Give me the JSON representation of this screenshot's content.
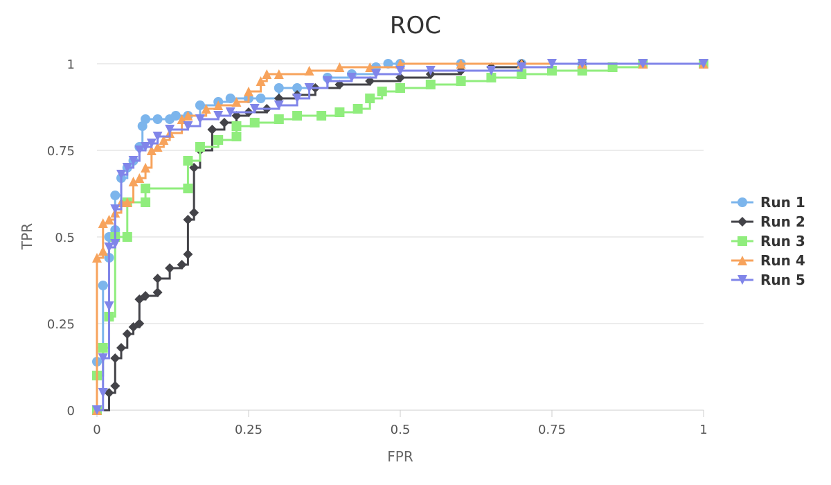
{
  "chart_data": {
    "type": "line",
    "title": "ROC",
    "xlabel": "FPR",
    "ylabel": "TPR",
    "xlim": [
      0,
      1
    ],
    "ylim": [
      0,
      1
    ],
    "x_ticks": [
      "0",
      "0.25",
      "0.5",
      "0.75",
      "1"
    ],
    "x_tick_values": [
      0,
      0.25,
      0.5,
      0.75,
      1
    ],
    "y_ticks": [
      "0",
      "0.25",
      "0.5",
      "0.75",
      "1"
    ],
    "y_tick_values": [
      0,
      0.25,
      0.5,
      0.75,
      1
    ],
    "grid": true,
    "legend_position": "right",
    "series": [
      {
        "name": "Run 1",
        "color": "#7cb5ec",
        "marker": "circle",
        "points": [
          [
            0,
            0
          ],
          [
            0,
            0.14
          ],
          [
            0.01,
            0.18
          ],
          [
            0.01,
            0.36
          ],
          [
            0.02,
            0.44
          ],
          [
            0.02,
            0.5
          ],
          [
            0.03,
            0.52
          ],
          [
            0.03,
            0.62
          ],
          [
            0.04,
            0.67
          ],
          [
            0.05,
            0.7
          ],
          [
            0.06,
            0.72
          ],
          [
            0.07,
            0.76
          ],
          [
            0.075,
            0.82
          ],
          [
            0.08,
            0.84
          ],
          [
            0.1,
            0.84
          ],
          [
            0.12,
            0.84
          ],
          [
            0.13,
            0.85
          ],
          [
            0.15,
            0.85
          ],
          [
            0.17,
            0.88
          ],
          [
            0.2,
            0.89
          ],
          [
            0.22,
            0.9
          ],
          [
            0.25,
            0.9
          ],
          [
            0.27,
            0.9
          ],
          [
            0.3,
            0.93
          ],
          [
            0.33,
            0.93
          ],
          [
            0.38,
            0.96
          ],
          [
            0.42,
            0.97
          ],
          [
            0.46,
            0.99
          ],
          [
            0.48,
            1
          ],
          [
            0.5,
            1
          ],
          [
            0.6,
            1
          ],
          [
            0.7,
            1
          ],
          [
            0.8,
            1
          ],
          [
            0.9,
            1
          ],
          [
            1,
            1
          ]
        ]
      },
      {
        "name": "Run 2",
        "color": "#434348",
        "marker": "diamond",
        "points": [
          [
            0,
            0
          ],
          [
            0.02,
            0.05
          ],
          [
            0.03,
            0.07
          ],
          [
            0.03,
            0.15
          ],
          [
            0.04,
            0.18
          ],
          [
            0.05,
            0.22
          ],
          [
            0.06,
            0.24
          ],
          [
            0.07,
            0.25
          ],
          [
            0.07,
            0.32
          ],
          [
            0.08,
            0.33
          ],
          [
            0.1,
            0.34
          ],
          [
            0.1,
            0.38
          ],
          [
            0.12,
            0.41
          ],
          [
            0.14,
            0.42
          ],
          [
            0.15,
            0.45
          ],
          [
            0.15,
            0.55
          ],
          [
            0.16,
            0.57
          ],
          [
            0.16,
            0.7
          ],
          [
            0.17,
            0.75
          ],
          [
            0.19,
            0.81
          ],
          [
            0.21,
            0.83
          ],
          [
            0.23,
            0.85
          ],
          [
            0.25,
            0.86
          ],
          [
            0.28,
            0.87
          ],
          [
            0.3,
            0.9
          ],
          [
            0.33,
            0.91
          ],
          [
            0.36,
            0.93
          ],
          [
            0.4,
            0.94
          ],
          [
            0.45,
            0.95
          ],
          [
            0.5,
            0.96
          ],
          [
            0.55,
            0.97
          ],
          [
            0.6,
            0.98
          ],
          [
            0.65,
            0.99
          ],
          [
            0.7,
            1
          ],
          [
            0.8,
            1
          ],
          [
            0.9,
            1
          ],
          [
            1,
            1
          ]
        ]
      },
      {
        "name": "Run 3",
        "color": "#90ed7d",
        "marker": "square",
        "points": [
          [
            0,
            0
          ],
          [
            0,
            0.1
          ],
          [
            0.01,
            0.18
          ],
          [
            0.02,
            0.27
          ],
          [
            0.03,
            0.5
          ],
          [
            0.05,
            0.5
          ],
          [
            0.05,
            0.6
          ],
          [
            0.08,
            0.6
          ],
          [
            0.08,
            0.64
          ],
          [
            0.15,
            0.64
          ],
          [
            0.15,
            0.72
          ],
          [
            0.17,
            0.76
          ],
          [
            0.2,
            0.78
          ],
          [
            0.23,
            0.79
          ],
          [
            0.23,
            0.82
          ],
          [
            0.26,
            0.83
          ],
          [
            0.3,
            0.84
          ],
          [
            0.33,
            0.85
          ],
          [
            0.37,
            0.85
          ],
          [
            0.4,
            0.86
          ],
          [
            0.43,
            0.87
          ],
          [
            0.45,
            0.9
          ],
          [
            0.47,
            0.92
          ],
          [
            0.5,
            0.93
          ],
          [
            0.55,
            0.94
          ],
          [
            0.6,
            0.95
          ],
          [
            0.65,
            0.96
          ],
          [
            0.7,
            0.97
          ],
          [
            0.75,
            0.98
          ],
          [
            0.8,
            0.98
          ],
          [
            0.85,
            0.99
          ],
          [
            0.9,
            1
          ],
          [
            1,
            1
          ]
        ]
      },
      {
        "name": "Run 4",
        "color": "#f7a35c",
        "marker": "triangle",
        "points": [
          [
            0,
            0
          ],
          [
            0,
            0.44
          ],
          [
            0.01,
            0.46
          ],
          [
            0.01,
            0.54
          ],
          [
            0.02,
            0.55
          ],
          [
            0.03,
            0.57
          ],
          [
            0.04,
            0.6
          ],
          [
            0.05,
            0.6
          ],
          [
            0.06,
            0.66
          ],
          [
            0.07,
            0.67
          ],
          [
            0.08,
            0.7
          ],
          [
            0.09,
            0.75
          ],
          [
            0.1,
            0.76
          ],
          [
            0.11,
            0.78
          ],
          [
            0.12,
            0.8
          ],
          [
            0.14,
            0.84
          ],
          [
            0.15,
            0.85
          ],
          [
            0.18,
            0.87
          ],
          [
            0.2,
            0.88
          ],
          [
            0.23,
            0.89
          ],
          [
            0.25,
            0.92
          ],
          [
            0.27,
            0.95
          ],
          [
            0.28,
            0.97
          ],
          [
            0.3,
            0.97
          ],
          [
            0.35,
            0.98
          ],
          [
            0.4,
            0.99
          ],
          [
            0.45,
            0.99
          ],
          [
            0.5,
            1
          ],
          [
            0.6,
            1
          ],
          [
            0.7,
            1
          ],
          [
            0.8,
            1
          ],
          [
            0.9,
            1
          ],
          [
            1,
            1
          ]
        ]
      },
      {
        "name": "Run 5",
        "color": "#8085e9",
        "marker": "triangle-down",
        "points": [
          [
            0,
            0
          ],
          [
            0.01,
            0.05
          ],
          [
            0.01,
            0.15
          ],
          [
            0.02,
            0.3
          ],
          [
            0.02,
            0.47
          ],
          [
            0.03,
            0.48
          ],
          [
            0.03,
            0.58
          ],
          [
            0.04,
            0.68
          ],
          [
            0.05,
            0.7
          ],
          [
            0.06,
            0.72
          ],
          [
            0.07,
            0.75
          ],
          [
            0.08,
            0.76
          ],
          [
            0.09,
            0.77
          ],
          [
            0.1,
            0.79
          ],
          [
            0.12,
            0.81
          ],
          [
            0.15,
            0.82
          ],
          [
            0.17,
            0.84
          ],
          [
            0.2,
            0.85
          ],
          [
            0.22,
            0.86
          ],
          [
            0.26,
            0.87
          ],
          [
            0.3,
            0.88
          ],
          [
            0.33,
            0.9
          ],
          [
            0.35,
            0.93
          ],
          [
            0.38,
            0.95
          ],
          [
            0.42,
            0.96
          ],
          [
            0.46,
            0.97
          ],
          [
            0.5,
            0.98
          ],
          [
            0.55,
            0.98
          ],
          [
            0.65,
            0.98
          ],
          [
            0.7,
            0.99
          ],
          [
            0.75,
            1
          ],
          [
            0.8,
            1
          ],
          [
            0.9,
            1
          ],
          [
            1,
            1
          ]
        ]
      }
    ]
  }
}
